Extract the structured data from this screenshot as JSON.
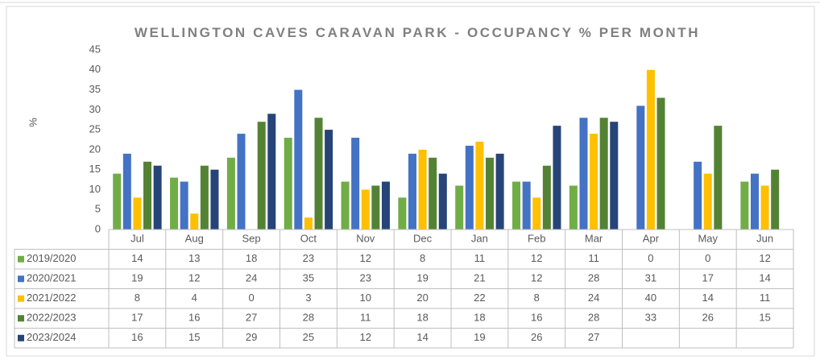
{
  "chart_data": {
    "type": "bar",
    "title": "WELLINGTON CAVES CARAVAN PARK - OCCUPANCY % PER MONTH",
    "y_label": "%",
    "categories": [
      "Jul",
      "Aug",
      "Sep",
      "Oct",
      "Nov",
      "Dec",
      "Jan",
      "Feb",
      "Mar",
      "Apr",
      "May",
      "Jun"
    ],
    "series": [
      {
        "name": "2019/2020",
        "color": "#70ad47",
        "values": [
          14,
          13,
          18,
          23,
          12,
          8,
          11,
          12,
          11,
          0,
          0,
          12
        ]
      },
      {
        "name": "2020/2021",
        "color": "#4472c4",
        "values": [
          19,
          12,
          24,
          35,
          23,
          19,
          21,
          12,
          28,
          31,
          17,
          14
        ]
      },
      {
        "name": "2021/2022",
        "color": "#ffc000",
        "values": [
          8,
          4,
          0,
          3,
          10,
          20,
          22,
          8,
          24,
          40,
          14,
          11
        ]
      },
      {
        "name": "2022/2023",
        "color": "#548235",
        "values": [
          17,
          16,
          27,
          28,
          11,
          18,
          18,
          16,
          28,
          33,
          26,
          15
        ]
      },
      {
        "name": "2023/2024",
        "color": "#264478",
        "values": [
          16,
          15,
          29,
          25,
          12,
          14,
          19,
          26,
          27,
          null,
          null,
          null
        ]
      }
    ],
    "ylim": [
      0,
      45
    ],
    "yticks": [
      0,
      5,
      10,
      15,
      20,
      25,
      30,
      35,
      40,
      45
    ],
    "grid": false,
    "data_table": true
  }
}
